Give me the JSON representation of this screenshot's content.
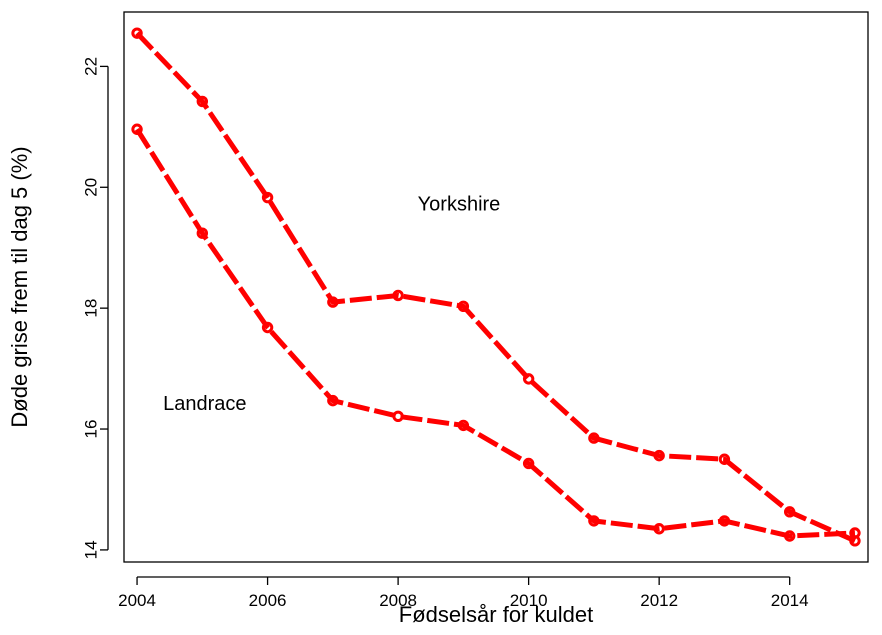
{
  "chart_data": {
    "type": "line",
    "title": "",
    "xlabel": "Fødselsår for kuldet",
    "ylabel": "Døde grise frem til dag 5 (%)",
    "xlim": [
      2003.8,
      2015.2
    ],
    "ylim": [
      13.8,
      22.9
    ],
    "x_ticks": [
      2004,
      2006,
      2008,
      2010,
      2012,
      2014
    ],
    "y_ticks": [
      14,
      16,
      18,
      20,
      22
    ],
    "grid": false,
    "line_color": "#ff0000",
    "x": [
      2004,
      2005,
      2006,
      2007,
      2008,
      2009,
      2010,
      2011,
      2012,
      2013,
      2014,
      2015
    ],
    "series": [
      {
        "name": "Yorkshire",
        "values": [
          22.55,
          21.42,
          19.83,
          18.1,
          18.21,
          18.03,
          16.83,
          15.85,
          15.56,
          15.5,
          14.63,
          14.15
        ],
        "label_at": [
          2008.3,
          19.7
        ]
      },
      {
        "name": "Landrace",
        "values": [
          20.96,
          19.24,
          17.68,
          16.47,
          16.21,
          16.06,
          15.43,
          14.48,
          14.35,
          14.48,
          14.23,
          14.28
        ],
        "label_at": [
          2004.4,
          16.4
        ]
      }
    ]
  }
}
